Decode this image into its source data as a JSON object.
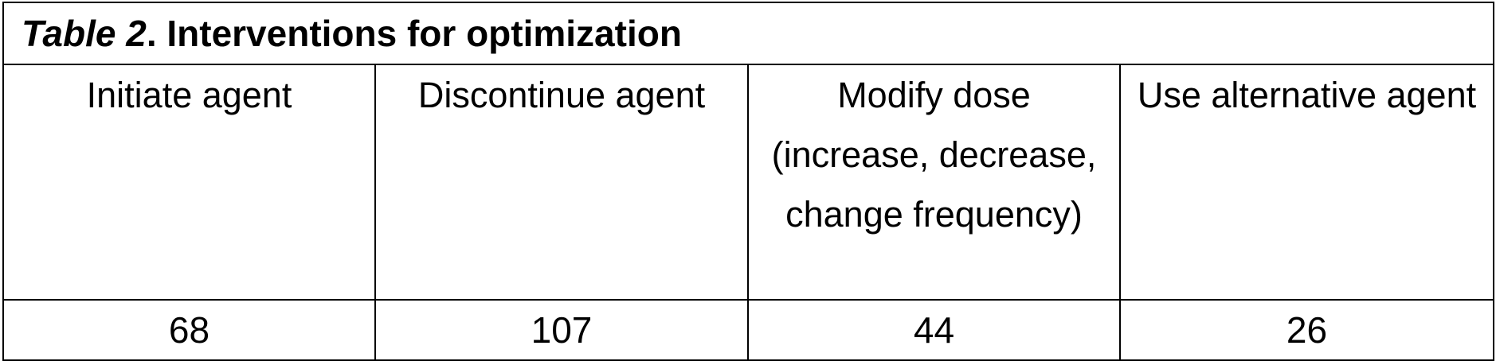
{
  "table": {
    "title": {
      "label": "Table 2",
      "text": ". Interventions for optimization"
    },
    "header": [
      "Initiate agent",
      "Discontinue agent",
      "Modify dose (increase, decrease, change frequency)",
      "Use alternative agent"
    ],
    "rows": [
      [
        68,
        107,
        44,
        26
      ]
    ]
  }
}
